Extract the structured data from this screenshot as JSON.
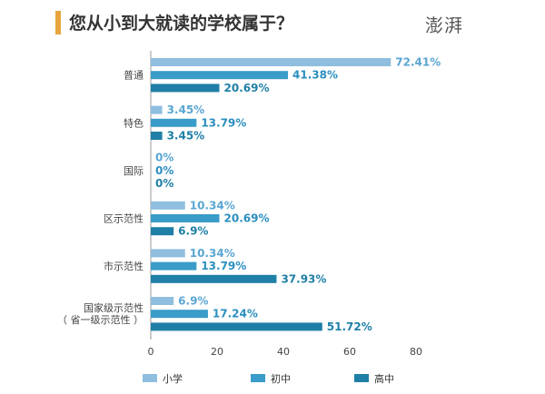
{
  "header": {
    "title": "您从小到大就读的学校属于？",
    "logo_text": "澎湃"
  },
  "colors": {
    "accent": "#e8a33c",
    "series": [
      "#8fbedf",
      "#3a9cc8",
      "#1f7fa6"
    ],
    "value_text": [
      "#5aa6d3",
      "#2b8fc0",
      "#1f7fa6"
    ]
  },
  "chart_data": {
    "type": "bar",
    "orientation": "horizontal",
    "title": "您从小到大就读的学校属于？",
    "categories": [
      {
        "lines": [
          "普通"
        ]
      },
      {
        "lines": [
          "特色"
        ]
      },
      {
        "lines": [
          "国际"
        ]
      },
      {
        "lines": [
          "区示范性"
        ]
      },
      {
        "lines": [
          "市示范性"
        ]
      },
      {
        "lines": [
          "国家级示范性",
          "（ 省一级示范性 ）"
        ]
      }
    ],
    "series": [
      {
        "name": "小学",
        "values": [
          72.41,
          3.45,
          0,
          10.34,
          10.34,
          6.9
        ],
        "labels": [
          "72.41%",
          "3.45%",
          "0%",
          "10.34%",
          "10.34%",
          "6.9%"
        ]
      },
      {
        "name": "初中",
        "values": [
          41.38,
          13.79,
          0,
          20.69,
          13.79,
          17.24
        ],
        "labels": [
          "41.38%",
          "13.79%",
          "0%",
          "20.69%",
          "13.79%",
          "17.24%"
        ]
      },
      {
        "name": "高中",
        "values": [
          20.69,
          3.45,
          0,
          6.9,
          37.93,
          51.72
        ],
        "labels": [
          "20.69%",
          "3.45%",
          "0%",
          "6.9%",
          "37.93%",
          "51.72%"
        ]
      }
    ],
    "xlim": [
      0,
      80
    ],
    "xticks": [
      0,
      20,
      40,
      60,
      80
    ],
    "xlabel": "",
    "ylabel": "",
    "grid": false,
    "legend_position": "bottom"
  }
}
